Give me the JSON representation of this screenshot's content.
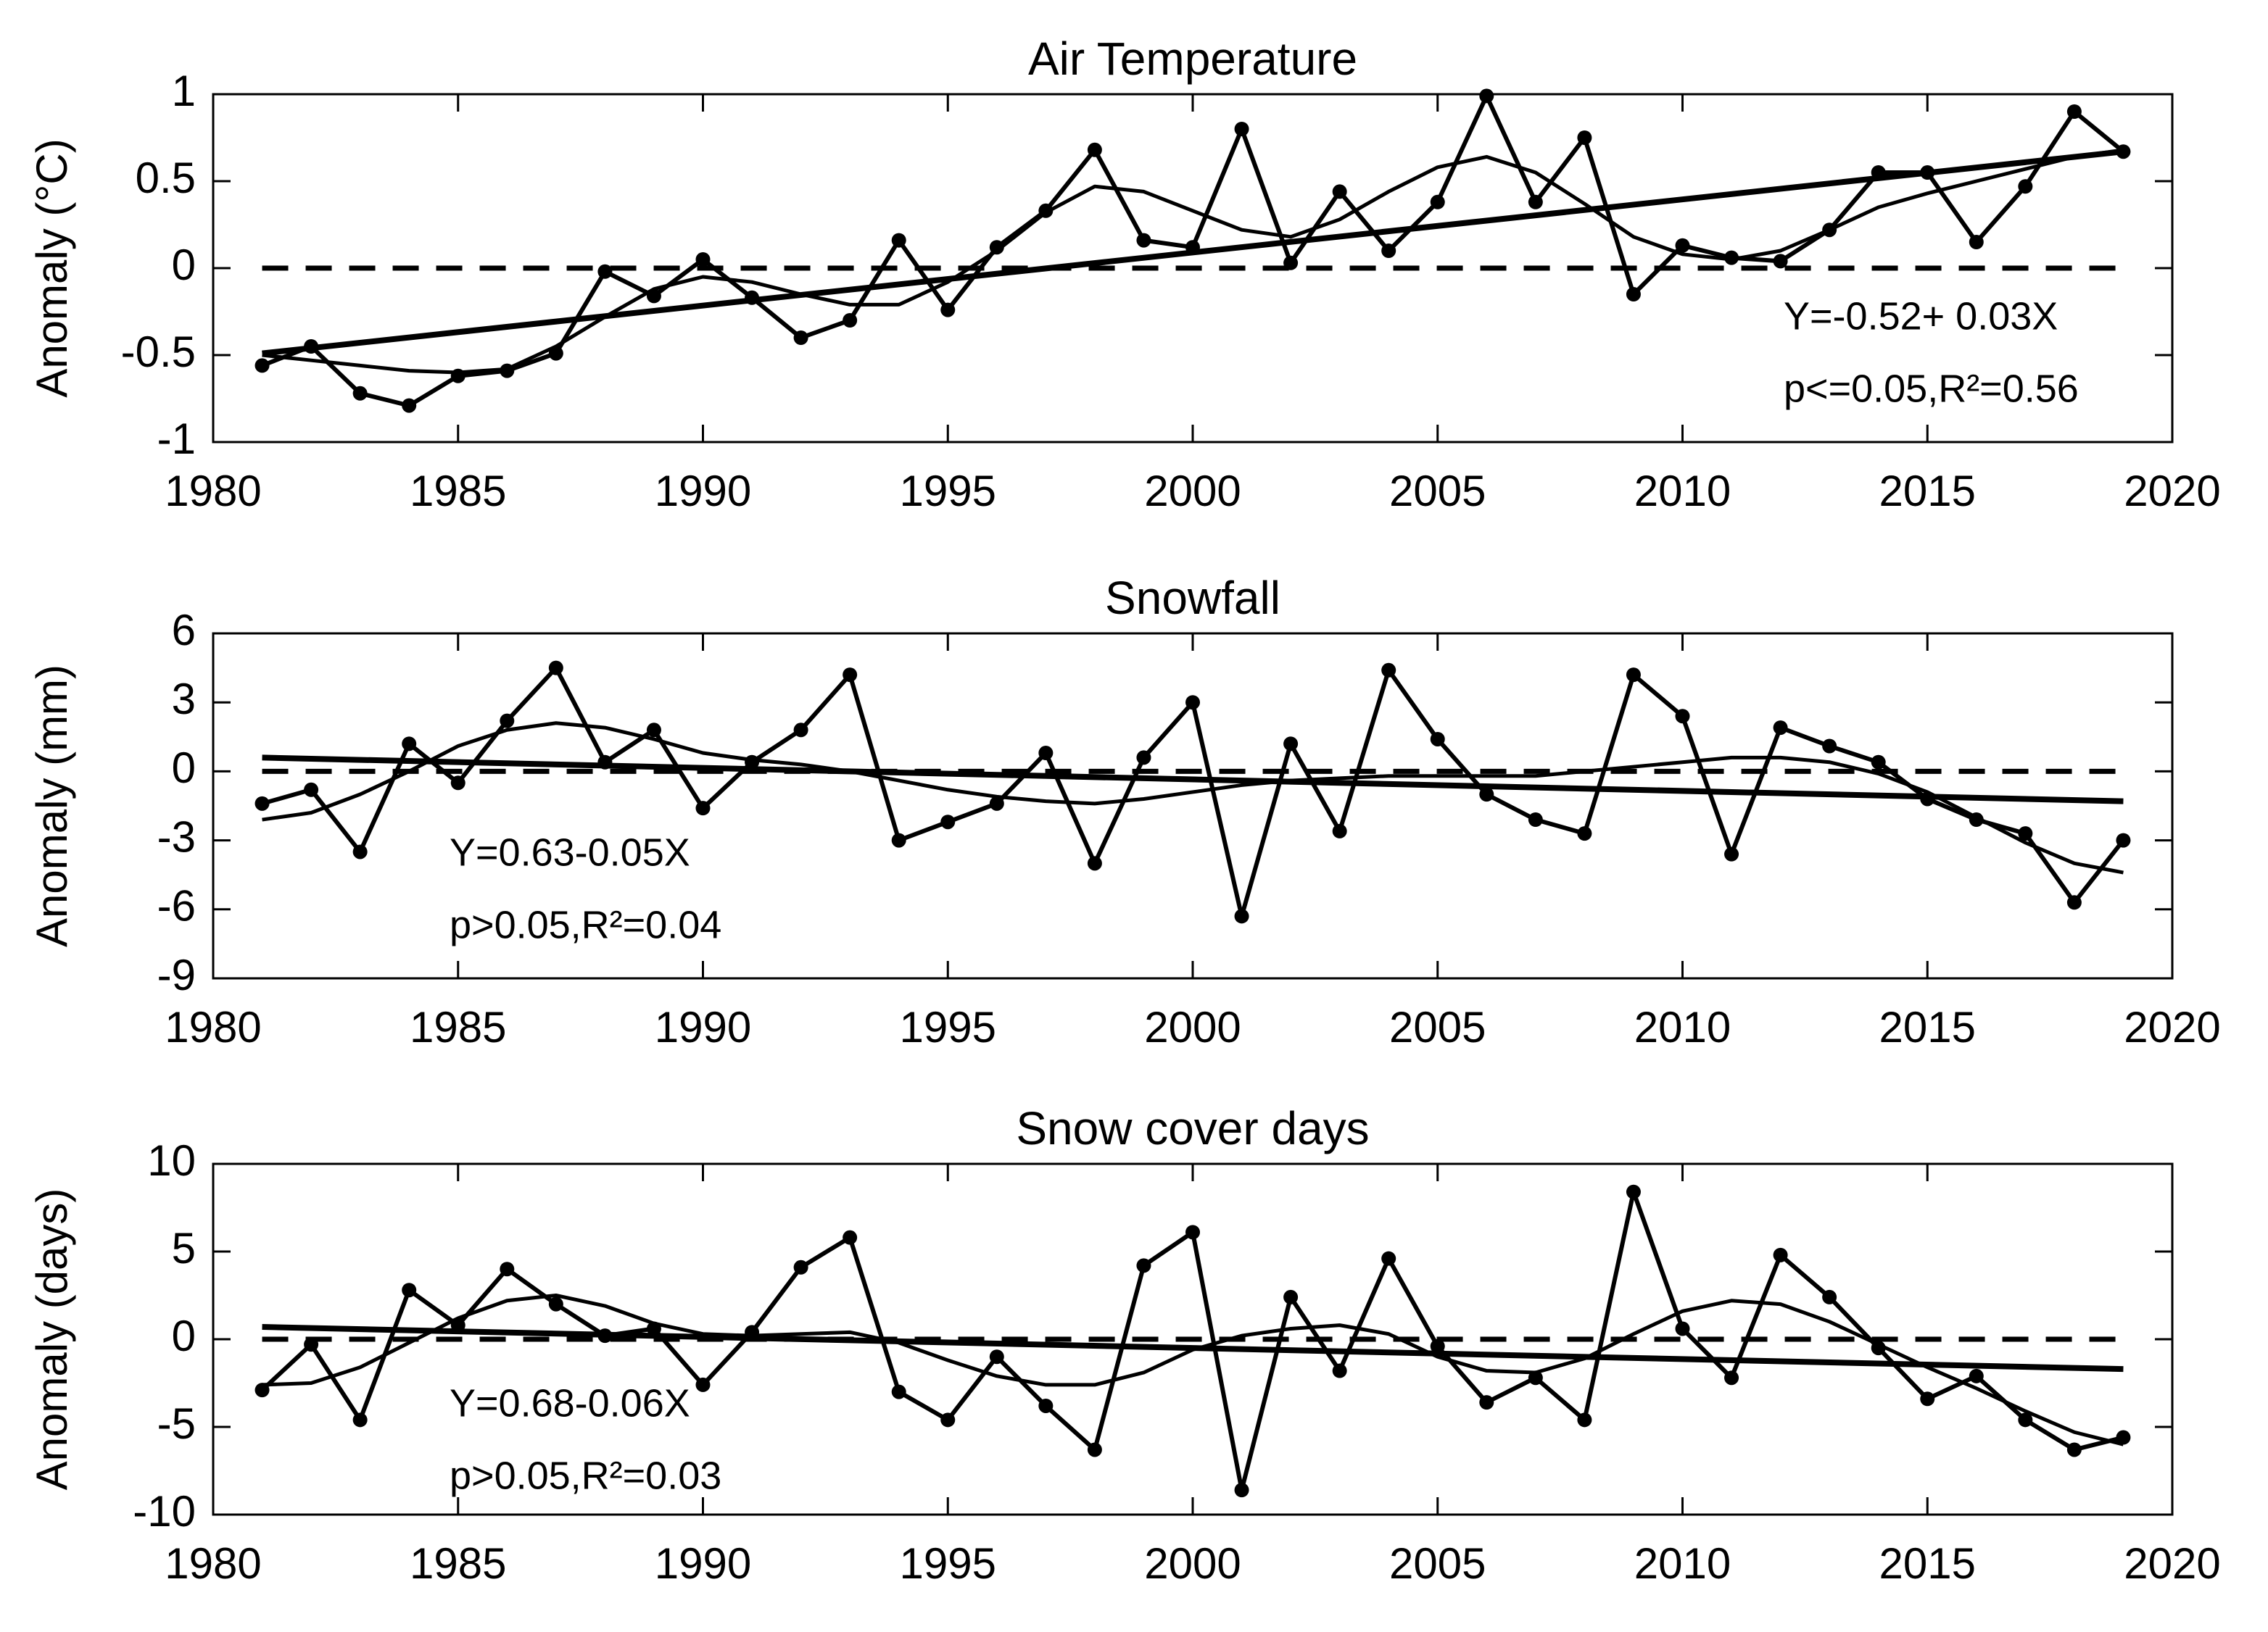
{
  "chart_data": [
    {
      "type": "line",
      "title": "Air Temperature",
      "ylabel": "Anomaly (°C)",
      "x": [
        1981,
        1982,
        1983,
        1984,
        1985,
        1986,
        1987,
        1988,
        1989,
        1990,
        1991,
        1992,
        1993,
        1994,
        1995,
        1996,
        1997,
        1998,
        1999,
        2000,
        2001,
        2002,
        2003,
        2004,
        2005,
        2006,
        2007,
        2008,
        2009,
        2010,
        2011,
        2012,
        2013,
        2014,
        2015,
        2016,
        2017,
        2018,
        2019
      ],
      "series": [
        {
          "color": "#000000",
          "marker": true,
          "values": [
            -0.56,
            -0.45,
            -0.72,
            -0.79,
            -0.62,
            -0.59,
            -0.49,
            -0.02,
            -0.16,
            0.05,
            -0.17,
            -0.4,
            -0.3,
            0.16,
            -0.24,
            0.12,
            0.33,
            0.68,
            0.16,
            0.12,
            0.8,
            0.03,
            0.44,
            0.1,
            0.38,
            0.99,
            0.38,
            0.75,
            -0.15,
            0.13,
            0.06,
            0.04,
            0.22,
            0.55,
            0.55,
            0.15,
            0.47,
            0.9,
            0.67
          ]
        },
        {
          "color": "#000000",
          "marker": false,
          "values": [
            -0.5,
            -0.53,
            -0.56,
            -0.59,
            -0.6,
            -0.58,
            -0.45,
            -0.28,
            -0.12,
            -0.05,
            -0.08,
            -0.15,
            -0.21,
            -0.21,
            -0.08,
            0.1,
            0.32,
            0.47,
            0.44,
            0.33,
            0.22,
            0.18,
            0.28,
            0.44,
            0.58,
            0.64,
            0.55,
            0.37,
            0.18,
            0.08,
            0.05,
            0.1,
            0.22,
            0.35,
            0.43,
            0.5,
            0.57,
            0.64,
            0.68
          ]
        },
        {
          "color": "#000000",
          "marker": false,
          "x": [
            1981,
            2019
          ],
          "values": [
            -0.49,
            0.67
          ]
        }
      ],
      "hline": 0,
      "annotation": [
        "Y=-0.52+  0.03X",
        "p<=0.05,R²=0.56"
      ],
      "xlim": [
        1980,
        2020
      ],
      "xticks": [
        1980,
        1985,
        1990,
        1995,
        2000,
        2005,
        2010,
        2015,
        2020
      ],
      "ylim": [
        -1,
        1
      ],
      "yticks": [
        -1,
        -0.5,
        0,
        0.5,
        1
      ]
    },
    {
      "type": "line",
      "title": "Snowfall",
      "ylabel": "Anomaly (mm)",
      "x": [
        1981,
        1982,
        1983,
        1984,
        1985,
        1986,
        1987,
        1988,
        1989,
        1990,
        1991,
        1992,
        1993,
        1994,
        1995,
        1996,
        1997,
        1998,
        1999,
        2000,
        2001,
        2002,
        2003,
        2004,
        2005,
        2006,
        2007,
        2008,
        2009,
        2010,
        2011,
        2012,
        2013,
        2014,
        2015,
        2016,
        2017,
        2018,
        2019
      ],
      "series": [
        {
          "color": "#000000",
          "marker": true,
          "values": [
            -1.4,
            -0.8,
            -3.5,
            1.2,
            -0.5,
            2.2,
            4.5,
            0.4,
            1.8,
            -1.6,
            0.4,
            1.8,
            4.2,
            -3.0,
            -2.2,
            -1.4,
            0.8,
            -4.0,
            0.6,
            3.0,
            -6.3,
            1.2,
            -2.6,
            4.4,
            1.4,
            -1.0,
            -2.1,
            -2.7,
            4.2,
            2.4,
            -3.6,
            1.9,
            1.1,
            0.4,
            -1.2,
            -2.1,
            -2.7,
            -5.7,
            -3.0
          ]
        },
        {
          "color": "#000000",
          "marker": false,
          "values": [
            -2.1,
            -1.8,
            -1.0,
            0.0,
            1.1,
            1.8,
            2.1,
            1.9,
            1.4,
            0.8,
            0.5,
            0.3,
            0.0,
            -0.4,
            -0.8,
            -1.1,
            -1.3,
            -1.4,
            -1.2,
            -0.9,
            -0.6,
            -0.4,
            -0.3,
            -0.2,
            -0.2,
            -0.2,
            -0.2,
            0.0,
            0.2,
            0.4,
            0.6,
            0.6,
            0.4,
            -0.1,
            -0.9,
            -2.0,
            -3.1,
            -4.0,
            -4.4
          ]
        },
        {
          "color": "#000000",
          "marker": false,
          "x": [
            1981,
            2019
          ],
          "values": [
            0.6,
            -1.3
          ]
        }
      ],
      "hline": 0,
      "annotation": [
        "Y=0.63-0.05X",
        "p>0.05,R²=0.04"
      ],
      "xlim": [
        1980,
        2020
      ],
      "xticks": [
        1980,
        1985,
        1990,
        1995,
        2000,
        2005,
        2010,
        2015,
        2020
      ],
      "ylim": [
        -9,
        6
      ],
      "yticks": [
        -9,
        -6,
        -3,
        0,
        3,
        6
      ]
    },
    {
      "type": "line",
      "title": "Snow cover days",
      "ylabel": "Anomaly (days)",
      "x": [
        1981,
        1982,
        1983,
        1984,
        1985,
        1986,
        1987,
        1988,
        1989,
        1990,
        1991,
        1992,
        1993,
        1994,
        1995,
        1996,
        1997,
        1998,
        1999,
        2000,
        2001,
        2002,
        2003,
        2004,
        2005,
        2006,
        2007,
        2008,
        2009,
        2010,
        2011,
        2012,
        2013,
        2014,
        2015,
        2016,
        2017,
        2018,
        2019
      ],
      "series": [
        {
          "color": "#000000",
          "marker": true,
          "values": [
            -2.9,
            -0.3,
            -4.6,
            2.8,
            0.8,
            4.0,
            2.0,
            0.2,
            0.6,
            -2.6,
            0.4,
            4.1,
            5.8,
            -3.0,
            -4.6,
            -1.0,
            -3.8,
            -6.3,
            4.2,
            6.1,
            -8.6,
            2.4,
            -1.8,
            4.6,
            -0.4,
            -3.6,
            -2.2,
            -4.6,
            8.4,
            0.6,
            -2.2,
            4.8,
            2.4,
            -0.5,
            -3.4,
            -2.1,
            -4.6,
            -6.3,
            -5.6
          ]
        },
        {
          "color": "#000000",
          "marker": false,
          "values": [
            -2.6,
            -2.5,
            -1.6,
            -0.2,
            1.2,
            2.2,
            2.5,
            1.9,
            0.9,
            0.3,
            0.2,
            0.3,
            0.4,
            -0.2,
            -1.2,
            -2.1,
            -2.6,
            -2.6,
            -1.9,
            -0.6,
            0.2,
            0.6,
            0.8,
            0.3,
            -1.0,
            -1.8,
            -1.9,
            -1.1,
            0.3,
            1.6,
            2.2,
            2.0,
            1.0,
            -0.3,
            -1.6,
            -2.8,
            -4.1,
            -5.3,
            -6.0
          ]
        },
        {
          "color": "#000000",
          "marker": false,
          "x": [
            1981,
            2019
          ],
          "values": [
            0.7,
            -1.7
          ]
        }
      ],
      "hline": 0,
      "annotation": [
        "Y=0.68-0.06X",
        "p>0.05,R²=0.03"
      ],
      "xlim": [
        1980,
        2020
      ],
      "xticks": [
        1980,
        1985,
        1990,
        1995,
        2000,
        2005,
        2010,
        2015,
        2020
      ],
      "ylim": [
        -10,
        10
      ],
      "yticks": [
        -10,
        -5,
        0,
        5,
        10
      ]
    }
  ]
}
